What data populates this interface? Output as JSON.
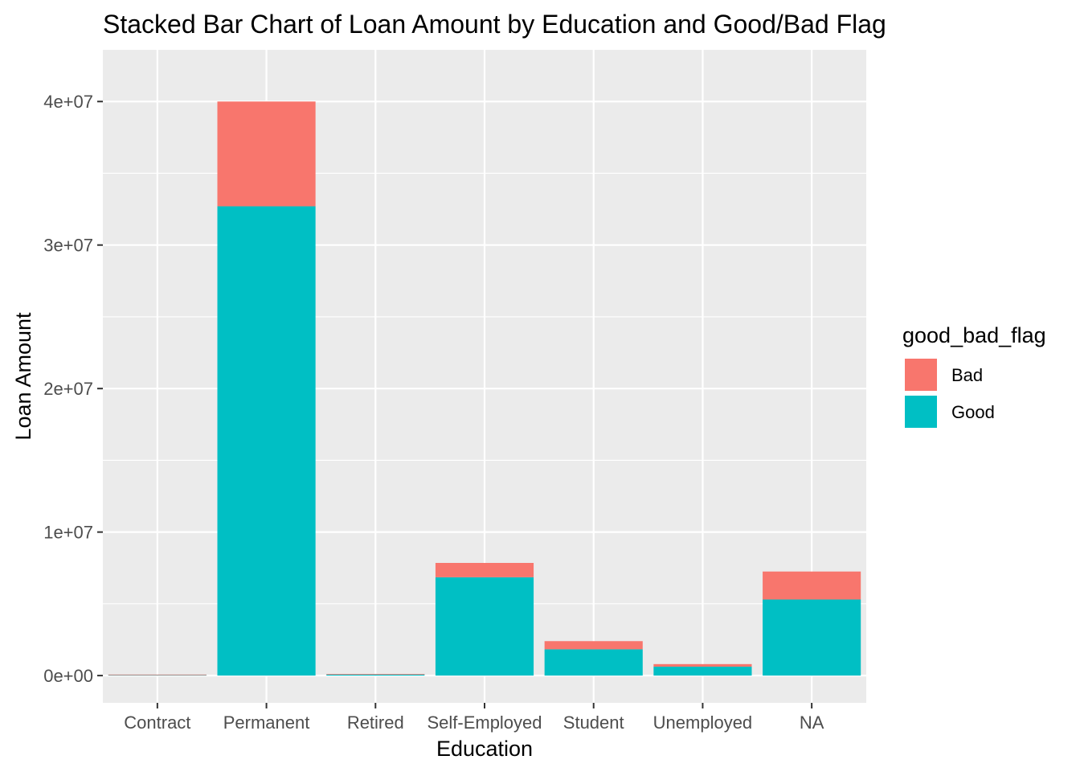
{
  "chart_data": {
    "type": "bar",
    "stacked": true,
    "title": "Stacked Bar Chart of Loan Amount by Education and Good/Bad Flag",
    "xlabel": "Education",
    "ylabel": "Loan Amount",
    "categories": [
      "Contract",
      "Permanent",
      "Retired",
      "Self-Employed",
      "Student",
      "Unemployed",
      "NA"
    ],
    "series": [
      {
        "name": "Good",
        "color": "#00BFC4",
        "values": [
          60000,
          32700000,
          90000,
          6850000,
          1830000,
          620000,
          5300000
        ]
      },
      {
        "name": "Bad",
        "color": "#F8766D",
        "values": [
          10000,
          7300000,
          20000,
          1000000,
          570000,
          180000,
          1950000
        ]
      }
    ],
    "ylim": [
      -1900000,
      43600000
    ],
    "yticks": [
      0,
      10000000,
      20000000,
      30000000,
      40000000
    ],
    "ytick_labels": [
      "0e+00",
      "1e+07",
      "2e+07",
      "3e+07",
      "4e+07"
    ],
    "legend": {
      "title": "good_bad_flag",
      "position": "right",
      "entries": [
        {
          "label": "Bad",
          "color": "#F8766D"
        },
        {
          "label": "Good",
          "color": "#00BFC4"
        }
      ]
    },
    "grid": true,
    "panel_background": "#EBEBEB"
  }
}
